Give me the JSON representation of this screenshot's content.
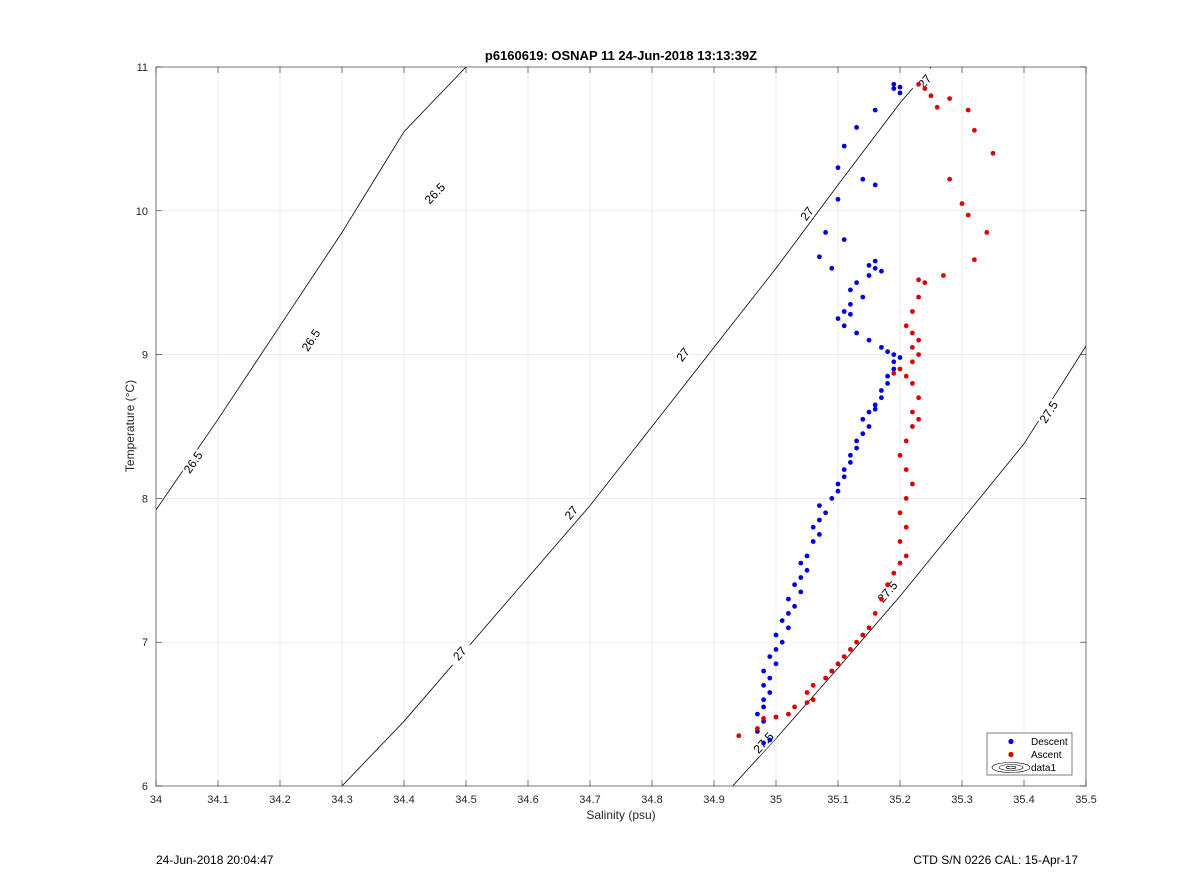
{
  "footer": {
    "left": "24-Jun-2018 20:04:47",
    "right": "CTD S/N 0226  CAL: 15-Apr-17"
  },
  "chart_data": {
    "type": "scatter",
    "title": "p6160619: OSNAP 11 24-Jun-2018 13:13:39Z",
    "xlabel": "Salinity (psu)",
    "ylabel": "Temperature (°C)",
    "xlim": [
      34,
      35.5
    ],
    "ylim": [
      6,
      11
    ],
    "xticks": [
      "34",
      "34.1",
      "34.2",
      "34.3",
      "34.4",
      "34.5",
      "34.6",
      "34.7",
      "34.8",
      "34.9",
      "35",
      "35.1",
      "35.2",
      "35.3",
      "35.4",
      "35.5"
    ],
    "yticks": [
      "6",
      "7",
      "8",
      "9",
      "10",
      "11"
    ],
    "grid": true,
    "legend_position": "bottom-right",
    "colors": {
      "descent": "#0000dd",
      "ascent": "#dd0000",
      "contour": "#000000"
    },
    "series": [
      {
        "name": "Descent",
        "points": [
          [
            34.98,
            6.3
          ],
          [
            34.99,
            6.32
          ],
          [
            34.97,
            6.38
          ],
          [
            34.98,
            6.45
          ],
          [
            34.97,
            6.5
          ],
          [
            34.98,
            6.55
          ],
          [
            34.98,
            6.6
          ],
          [
            34.99,
            6.65
          ],
          [
            34.98,
            6.7
          ],
          [
            34.99,
            6.75
          ],
          [
            34.98,
            6.8
          ],
          [
            35.0,
            6.85
          ],
          [
            34.99,
            6.9
          ],
          [
            35.0,
            6.95
          ],
          [
            35.01,
            7.0
          ],
          [
            35.0,
            7.05
          ],
          [
            35.02,
            7.1
          ],
          [
            35.01,
            7.15
          ],
          [
            35.02,
            7.2
          ],
          [
            35.03,
            7.25
          ],
          [
            35.02,
            7.3
          ],
          [
            35.04,
            7.35
          ],
          [
            35.03,
            7.4
          ],
          [
            35.04,
            7.45
          ],
          [
            35.05,
            7.5
          ],
          [
            35.04,
            7.55
          ],
          [
            35.05,
            7.6
          ],
          [
            35.06,
            7.7
          ],
          [
            35.07,
            7.75
          ],
          [
            35.06,
            7.8
          ],
          [
            35.07,
            7.85
          ],
          [
            35.08,
            7.9
          ],
          [
            35.07,
            7.95
          ],
          [
            35.09,
            8.0
          ],
          [
            35.1,
            8.05
          ],
          [
            35.1,
            8.1
          ],
          [
            35.11,
            8.15
          ],
          [
            35.11,
            8.2
          ],
          [
            35.12,
            8.25
          ],
          [
            35.12,
            8.3
          ],
          [
            35.13,
            8.35
          ],
          [
            35.13,
            8.4
          ],
          [
            35.14,
            8.45
          ],
          [
            35.15,
            8.5
          ],
          [
            35.14,
            8.55
          ],
          [
            35.15,
            8.6
          ],
          [
            35.16,
            8.62
          ],
          [
            35.16,
            8.65
          ],
          [
            35.17,
            8.7
          ],
          [
            35.17,
            8.75
          ],
          [
            35.18,
            8.8
          ],
          [
            35.18,
            8.85
          ],
          [
            35.19,
            8.9
          ],
          [
            35.19,
            8.95
          ],
          [
            35.2,
            8.98
          ],
          [
            35.19,
            9.0
          ],
          [
            35.18,
            9.02
          ],
          [
            35.17,
            9.05
          ],
          [
            35.15,
            9.1
          ],
          [
            35.13,
            9.15
          ],
          [
            35.11,
            9.2
          ],
          [
            35.1,
            9.25
          ],
          [
            35.12,
            9.28
          ],
          [
            35.11,
            9.3
          ],
          [
            35.12,
            9.35
          ],
          [
            35.14,
            9.4
          ],
          [
            35.12,
            9.45
          ],
          [
            35.13,
            9.5
          ],
          [
            35.15,
            9.55
          ],
          [
            35.16,
            9.6
          ],
          [
            35.17,
            9.58
          ],
          [
            35.16,
            9.65
          ],
          [
            35.15,
            9.62
          ],
          [
            35.09,
            9.6
          ],
          [
            35.07,
            9.68
          ],
          [
            35.08,
            9.85
          ],
          [
            35.11,
            9.8
          ],
          [
            35.1,
            10.08
          ],
          [
            35.14,
            10.22
          ],
          [
            35.16,
            10.18
          ],
          [
            35.1,
            10.3
          ],
          [
            35.11,
            10.45
          ],
          [
            35.13,
            10.58
          ],
          [
            35.16,
            10.7
          ],
          [
            35.19,
            10.85
          ],
          [
            35.2,
            10.82
          ],
          [
            35.2,
            10.86
          ],
          [
            35.19,
            10.88
          ]
        ]
      },
      {
        "name": "Ascent",
        "points": [
          [
            34.94,
            6.35
          ],
          [
            34.97,
            6.4
          ],
          [
            34.98,
            6.47
          ],
          [
            35.0,
            6.48
          ],
          [
            35.02,
            6.5
          ],
          [
            35.03,
            6.55
          ],
          [
            35.05,
            6.58
          ],
          [
            35.06,
            6.6
          ],
          [
            35.05,
            6.65
          ],
          [
            35.06,
            6.7
          ],
          [
            35.08,
            6.75
          ],
          [
            35.09,
            6.8
          ],
          [
            35.1,
            6.85
          ],
          [
            35.11,
            6.9
          ],
          [
            35.12,
            6.95
          ],
          [
            35.13,
            7.0
          ],
          [
            35.14,
            7.05
          ],
          [
            35.15,
            7.1
          ],
          [
            35.16,
            7.2
          ],
          [
            35.17,
            7.3
          ],
          [
            35.18,
            7.4
          ],
          [
            35.19,
            7.48
          ],
          [
            35.2,
            7.55
          ],
          [
            35.21,
            7.6
          ],
          [
            35.2,
            7.7
          ],
          [
            35.21,
            7.8
          ],
          [
            35.2,
            7.9
          ],
          [
            35.21,
            8.0
          ],
          [
            35.22,
            8.1
          ],
          [
            35.21,
            8.2
          ],
          [
            35.2,
            8.3
          ],
          [
            35.21,
            8.4
          ],
          [
            35.22,
            8.5
          ],
          [
            35.23,
            8.55
          ],
          [
            35.22,
            8.6
          ],
          [
            35.23,
            8.7
          ],
          [
            35.22,
            8.8
          ],
          [
            35.21,
            8.85
          ],
          [
            35.19,
            8.87
          ],
          [
            35.2,
            8.9
          ],
          [
            35.22,
            8.95
          ],
          [
            35.23,
            9.0
          ],
          [
            35.22,
            9.05
          ],
          [
            35.23,
            9.1
          ],
          [
            35.22,
            9.15
          ],
          [
            35.21,
            9.2
          ],
          [
            35.22,
            9.3
          ],
          [
            35.23,
            9.4
          ],
          [
            35.24,
            9.5
          ],
          [
            35.23,
            9.52
          ],
          [
            35.27,
            9.55
          ],
          [
            35.32,
            9.66
          ],
          [
            35.34,
            9.85
          ],
          [
            35.31,
            9.97
          ],
          [
            35.3,
            10.05
          ],
          [
            35.28,
            10.22
          ],
          [
            35.35,
            10.4
          ],
          [
            35.32,
            10.56
          ],
          [
            35.31,
            10.7
          ],
          [
            35.28,
            10.78
          ],
          [
            35.26,
            10.72
          ],
          [
            35.25,
            10.8
          ],
          [
            35.24,
            10.85
          ],
          [
            35.23,
            10.88
          ]
        ]
      }
    ],
    "contours": [
      {
        "level": "26.5",
        "points": [
          [
            34.0,
            7.92
          ],
          [
            34.1,
            8.55
          ],
          [
            34.2,
            9.2
          ],
          [
            34.3,
            9.85
          ],
          [
            34.4,
            10.55
          ],
          [
            34.5,
            11.0
          ]
        ],
        "label_at": [
          [
            34.06,
            8.25
          ],
          [
            34.25,
            9.1
          ],
          [
            34.45,
            10.12
          ]
        ]
      },
      {
        "level": "27",
        "points": [
          [
            34.3,
            6.0
          ],
          [
            34.4,
            6.45
          ],
          [
            34.5,
            6.95
          ],
          [
            34.6,
            7.45
          ],
          [
            34.7,
            7.95
          ],
          [
            34.8,
            8.5
          ],
          [
            34.9,
            9.05
          ],
          [
            35.0,
            9.6
          ],
          [
            35.1,
            10.18
          ],
          [
            35.2,
            10.75
          ],
          [
            35.25,
            11.0
          ]
        ],
        "label_at": [
          [
            34.49,
            6.92
          ],
          [
            34.67,
            7.9
          ],
          [
            34.85,
            9.0
          ],
          [
            35.05,
            9.98
          ],
          [
            35.24,
            10.9
          ]
        ]
      },
      {
        "level": "27.5",
        "points": [
          [
            34.93,
            6.0
          ],
          [
            35.0,
            6.33
          ],
          [
            35.1,
            6.82
          ],
          [
            35.2,
            7.32
          ],
          [
            35.3,
            7.85
          ],
          [
            35.4,
            8.38
          ],
          [
            35.5,
            9.06
          ]
        ],
        "label_at": [
          [
            34.98,
            6.3
          ],
          [
            35.18,
            7.35
          ],
          [
            35.44,
            8.6
          ]
        ]
      }
    ],
    "legend": [
      "Descent",
      "Ascent",
      "data1"
    ]
  }
}
